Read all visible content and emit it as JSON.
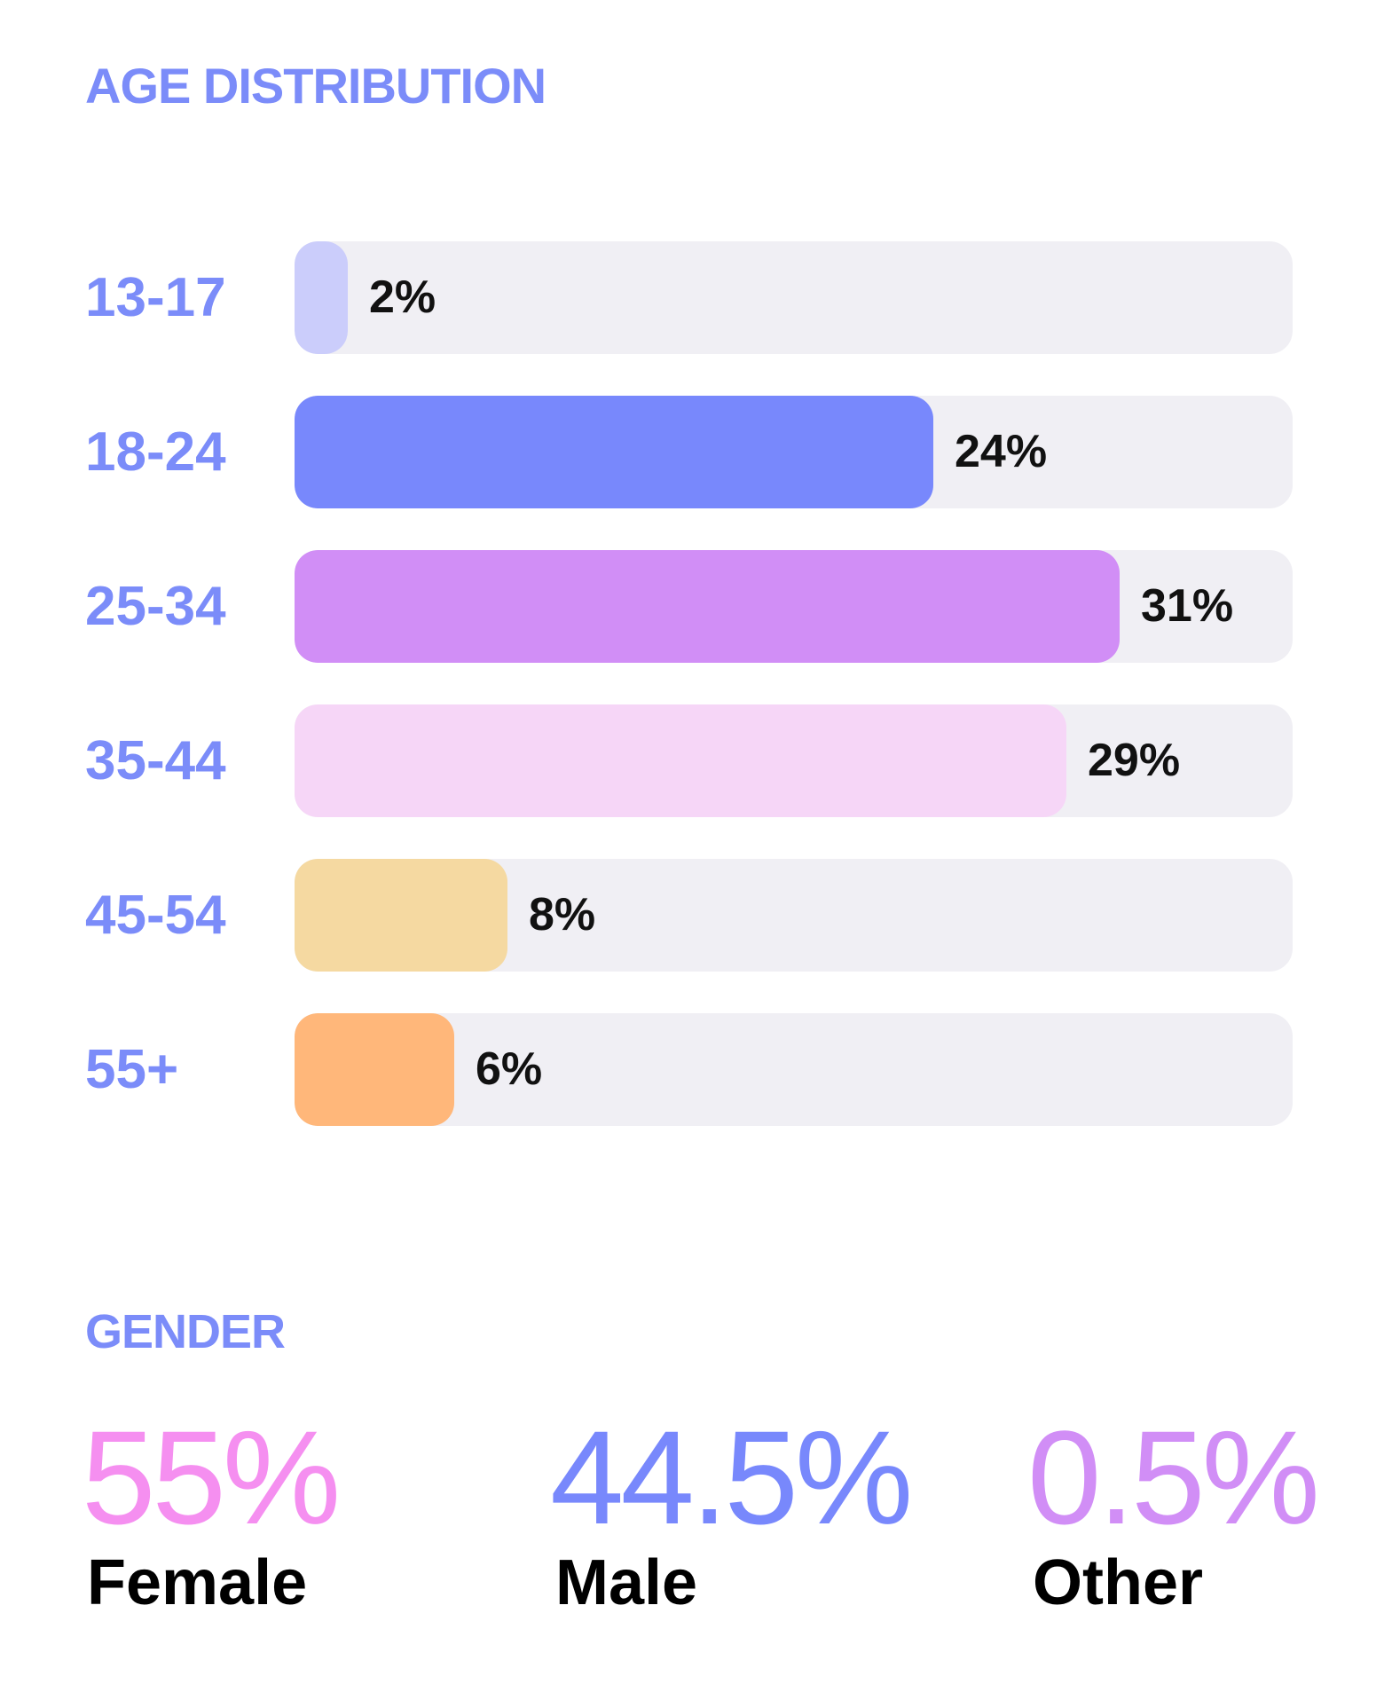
{
  "age_section": {
    "title": "AGE DISTRIBUTION"
  },
  "chart_data": {
    "type": "bar",
    "orientation": "horizontal",
    "title": "AGE DISTRIBUTION",
    "categories": [
      "13-17",
      "18-24",
      "25-34",
      "35-44",
      "45-54",
      "55+"
    ],
    "values": [
      2,
      24,
      31,
      29,
      8,
      6
    ],
    "value_labels": [
      "2%",
      "24%",
      "31%",
      "29%",
      "8%",
      "6%"
    ],
    "xlim": [
      0,
      37.5
    ],
    "colors": [
      "#cbcdfb",
      "#7888fc",
      "#d18ef6",
      "#f6d6f7",
      "#f5d9a1",
      "#ffb77a"
    ],
    "track_color": "#f0eff4",
    "grid": false,
    "legend": "none"
  },
  "gender_section": {
    "title": "GENDER",
    "stats": [
      {
        "value": "55%",
        "label": "Female",
        "color": "#f58ff0"
      },
      {
        "value": "44.5%",
        "label": "Male",
        "color": "#7888fc"
      },
      {
        "value": "0.5%",
        "label": "Other",
        "color": "#d18ef6"
      }
    ]
  }
}
